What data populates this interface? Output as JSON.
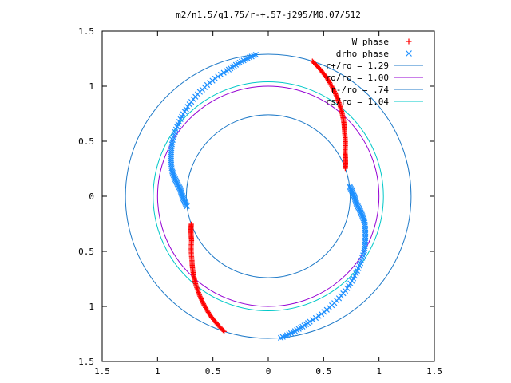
{
  "chart_data": {
    "type": "scatter",
    "title": "m2/n1.5/q1.75/r-+.57-j295/M0.07/512",
    "xlabel": "",
    "ylabel": "",
    "xlim": [
      -1.5,
      1.5
    ],
    "ylim": [
      -1.5,
      1.5
    ],
    "x_ticks": [
      -1.5,
      -1,
      -0.5,
      0,
      0.5,
      1,
      1.5
    ],
    "y_ticks": [
      -1.5,
      -1,
      -0.5,
      0,
      0.5,
      1,
      1.5
    ],
    "x_tick_labels": [
      "1.5",
      "1",
      "0.5",
      "0",
      "0.5",
      "1",
      "1.5"
    ],
    "y_tick_labels": [
      "1.5",
      "1",
      "0.5",
      "0",
      "0.5",
      "1",
      "1.5"
    ],
    "grid": false,
    "legend_position": "top-right",
    "circles": [
      {
        "name": "r+/ro = 1.29",
        "radius": 1.29,
        "color": "#1f7ac8"
      },
      {
        "name": "ro/ro = 1.00",
        "radius": 1.0,
        "color": "#9400d3"
      },
      {
        "name": "r-/ro = .74",
        "radius": 0.74,
        "color": "#1f7ac8"
      },
      {
        "name": "rs/ro = 1.04",
        "radius": 1.04,
        "color": "#00c8c8"
      }
    ],
    "series": [
      {
        "name": "W phase",
        "marker": "+",
        "color": "#ff0000",
        "arms": [
          {
            "r": [
              0.74,
              0.8,
              0.9,
              1.0,
              1.1,
              1.2,
              1.29
            ],
            "theta_deg": [
              20,
              30,
              40,
              48,
              56,
              64,
              72
            ]
          },
          {
            "r": [
              0.74,
              0.8,
              0.9,
              1.0,
              1.1,
              1.2,
              1.29
            ],
            "theta_deg": [
              200,
              210,
              220,
              228,
              236,
              244,
              252
            ]
          }
        ]
      },
      {
        "name": "drho phase",
        "marker": "x",
        "color": "#1e90ff",
        "arms": [
          {
            "r": [
              1.29,
              1.2,
              1.1,
              1.0,
              0.9,
              0.8,
              0.74
            ],
            "theta_deg": [
              95,
              108,
              130,
              150,
              165,
              175,
              187
            ]
          },
          {
            "r": [
              1.29,
              1.2,
              1.1,
              1.0,
              0.9,
              0.8,
              0.74
            ],
            "theta_deg": [
              275,
              288,
              310,
              330,
              345,
              355,
              7
            ]
          }
        ]
      }
    ]
  }
}
